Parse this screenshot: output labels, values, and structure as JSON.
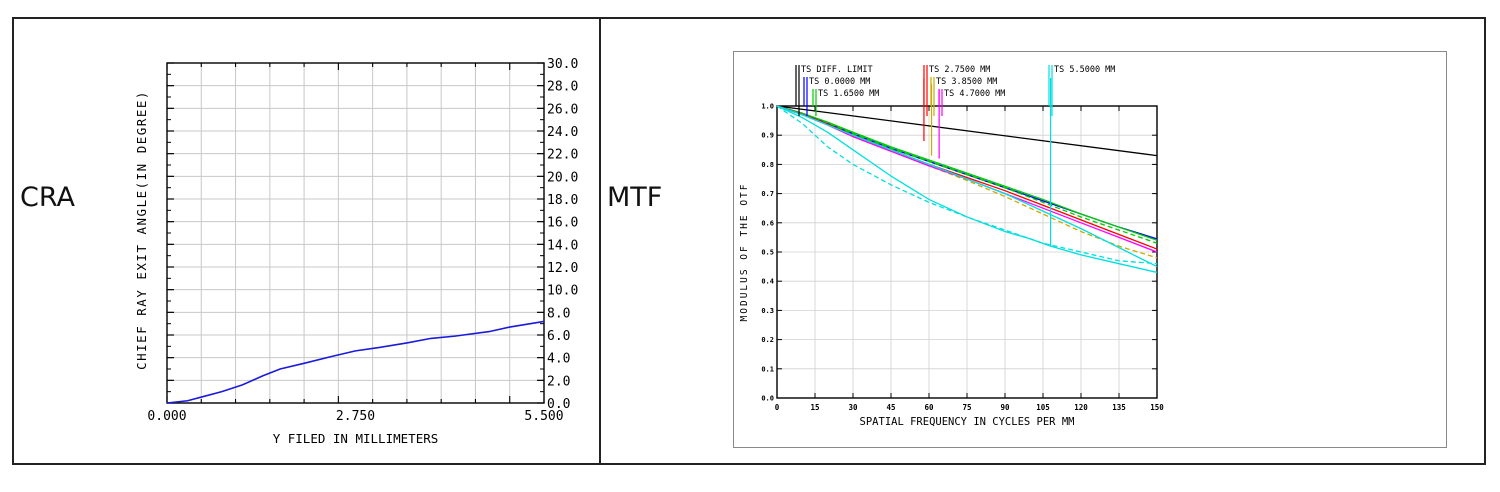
{
  "labels": {
    "cra": "CRA",
    "mtf": "MTF"
  },
  "chart_data": [
    {
      "type": "line",
      "id": "cra",
      "xlabel": "Y FILED IN MILLIMETERS",
      "ylabel": "CHIEF RAY EXIT ANGLE(IN DEGREE)",
      "xlim": [
        0,
        5.5
      ],
      "ylim": [
        0,
        30
      ],
      "x_ticks": [
        "0.000",
        "2.750",
        "5.500"
      ],
      "y_ticks": [
        "0.0",
        "2.0",
        "4.0",
        "6.0",
        "8.0",
        "10.0",
        "12.0",
        "14.0",
        "16.0",
        "18.0",
        "20.0",
        "22.0",
        "24.0",
        "26.0",
        "28.0",
        "30.0"
      ],
      "grid": true,
      "series": [
        {
          "color": "#1a1adb",
          "x": [
            0,
            0.3,
            0.55,
            0.8,
            1.1,
            1.4,
            1.65,
            2.0,
            2.4,
            2.75,
            3.1,
            3.5,
            3.85,
            4.2,
            4.7,
            5.0,
            5.5
          ],
          "y": [
            0,
            0.2,
            0.6,
            1.0,
            1.6,
            2.4,
            3.0,
            3.5,
            4.1,
            4.6,
            4.9,
            5.3,
            5.7,
            5.9,
            6.3,
            6.7,
            7.2
          ]
        }
      ]
    },
    {
      "type": "line",
      "id": "mtf",
      "xlabel": "SPATIAL FREQUENCY IN CYCLES PER MM",
      "ylabel": "MODULUS OF THE OTF",
      "xlim": [
        0,
        150
      ],
      "ylim": [
        0,
        1
      ],
      "x_ticks": [
        "0",
        "15",
        "30",
        "45",
        "60",
        "75",
        "90",
        "105",
        "120",
        "135",
        "150"
      ],
      "y_ticks": [
        "0.0",
        "0.1",
        "0.2",
        "0.3",
        "0.4",
        "0.5",
        "0.6",
        "0.7",
        "0.8",
        "0.9",
        "1.0"
      ],
      "legend": [
        {
          "text": "TS DIFF. LIMIT",
          "color": "#000000",
          "flag_x": 7
        },
        {
          "text": "TS 0.0000 MM",
          "color": "#0000ff",
          "flag_x": 11
        },
        {
          "text": "TS 1.6500 MM",
          "color": "#00cc00",
          "flag_x": 15
        },
        {
          "text": "TS 2.7500 MM",
          "color": "#ff0000",
          "flag_x": 58
        },
        {
          "text": "TS 3.8500 MM",
          "color": "#ccaa00",
          "flag_x": 62
        },
        {
          "text": "TS 4.7000 MM",
          "color": "#ff00ff",
          "flag_x": 66
        },
        {
          "text": "TS 5.5000 MM",
          "color": "#00e0e0",
          "flag_x": 108
        }
      ],
      "series": [
        {
          "color": "#000000",
          "dashed": false,
          "x": [
            0,
            150
          ],
          "y": [
            1.0,
            0.83
          ]
        },
        {
          "color": "#0000ff",
          "dashed": false,
          "x": [
            0,
            10,
            20,
            30,
            45,
            60,
            75,
            90,
            105,
            120,
            135,
            150
          ],
          "y": [
            1.0,
            0.975,
            0.94,
            0.905,
            0.855,
            0.81,
            0.765,
            0.72,
            0.675,
            0.63,
            0.585,
            0.545
          ]
        },
        {
          "color": "#00cc00",
          "dashed": false,
          "x": [
            0,
            10,
            20,
            30,
            45,
            60,
            75,
            90,
            105,
            120,
            135,
            150
          ],
          "y": [
            1.0,
            0.975,
            0.945,
            0.91,
            0.86,
            0.815,
            0.77,
            0.725,
            0.68,
            0.63,
            0.585,
            0.54
          ]
        },
        {
          "color": "#00cc00",
          "dashed": true,
          "x": [
            0,
            10,
            20,
            30,
            45,
            60,
            75,
            90,
            105,
            120,
            135,
            150
          ],
          "y": [
            1.0,
            0.973,
            0.94,
            0.905,
            0.855,
            0.81,
            0.765,
            0.72,
            0.67,
            0.62,
            0.575,
            0.53
          ]
        },
        {
          "color": "#ff0000",
          "dashed": false,
          "x": [
            0,
            10,
            20,
            30,
            45,
            60,
            75,
            90,
            105,
            120,
            135,
            150
          ],
          "y": [
            1.0,
            0.972,
            0.938,
            0.9,
            0.85,
            0.8,
            0.755,
            0.71,
            0.66,
            0.61,
            0.56,
            0.51
          ]
        },
        {
          "color": "#ccaa00",
          "dashed": true,
          "x": [
            0,
            10,
            20,
            30,
            45,
            60,
            75,
            90,
            105,
            120,
            135,
            150
          ],
          "y": [
            1.0,
            0.97,
            0.935,
            0.895,
            0.845,
            0.795,
            0.745,
            0.69,
            0.63,
            0.57,
            0.52,
            0.48
          ]
        },
        {
          "color": "#ff00ff",
          "dashed": false,
          "x": [
            0,
            10,
            20,
            30,
            45,
            60,
            75,
            90,
            105,
            120,
            135,
            150
          ],
          "y": [
            1.0,
            0.97,
            0.935,
            0.895,
            0.845,
            0.795,
            0.75,
            0.7,
            0.65,
            0.6,
            0.55,
            0.5
          ]
        },
        {
          "color": "#00e0e0",
          "dashed": false,
          "x": [
            0,
            10,
            20,
            30,
            45,
            60,
            75,
            90,
            105,
            120,
            135,
            150
          ],
          "y": [
            1.0,
            0.97,
            0.935,
            0.9,
            0.85,
            0.8,
            0.75,
            0.7,
            0.64,
            0.58,
            0.515,
            0.45
          ]
        },
        {
          "color": "#00e0e0",
          "dashed": false,
          "x": [
            0,
            10,
            20,
            30,
            45,
            60,
            75,
            90,
            100,
            108,
            120,
            135,
            150
          ],
          "y": [
            1.0,
            0.96,
            0.91,
            0.85,
            0.76,
            0.68,
            0.62,
            0.57,
            0.545,
            0.52,
            0.49,
            0.46,
            0.43
          ]
        },
        {
          "color": "#00e0e0",
          "dashed": true,
          "x": [
            0,
            10,
            20,
            30,
            45,
            60,
            75,
            90,
            105,
            120,
            135,
            150
          ],
          "y": [
            1.0,
            0.94,
            0.86,
            0.8,
            0.73,
            0.67,
            0.62,
            0.575,
            0.53,
            0.5,
            0.47,
            0.46
          ]
        }
      ]
    }
  ]
}
